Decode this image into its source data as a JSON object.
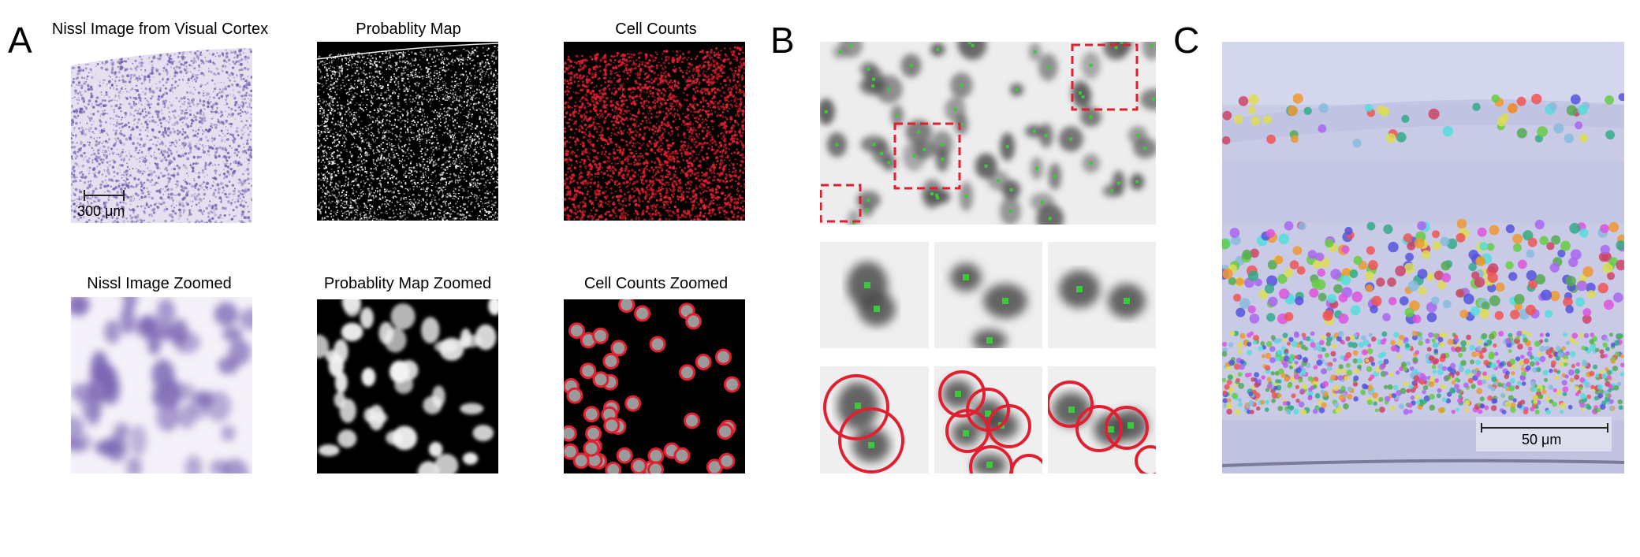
{
  "panels": {
    "a": {
      "letter": "A",
      "titles": {
        "nissl": "Nissl Image from Visual Cortex",
        "prob": "Probablity Map",
        "counts": "Cell Counts",
        "nissl_zoom": "Nissl Image Zoomed",
        "prob_zoom": "Probablity Map Zoomed",
        "counts_zoom": "Cell Counts Zoomed"
      },
      "scale_bar": "300 μm"
    },
    "b": {
      "letter": "B"
    },
    "c": {
      "letter": "C",
      "scale_bar": "50 μm"
    }
  },
  "colors": {
    "nissl_purple": "#6b5aa8",
    "detection_red": "#e02030",
    "center_green": "#3cc83c",
    "retina_bg": "#c9cbe6"
  }
}
